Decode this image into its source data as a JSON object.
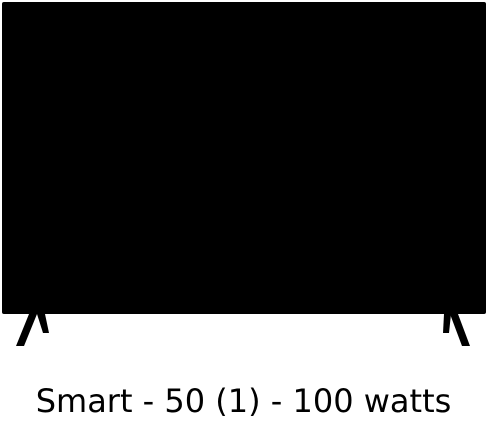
{
  "illustration": {
    "icon": "tv-icon",
    "screen_color": "#000000"
  },
  "caption": {
    "text": "Smart - 50 (1) - 100 watts"
  }
}
